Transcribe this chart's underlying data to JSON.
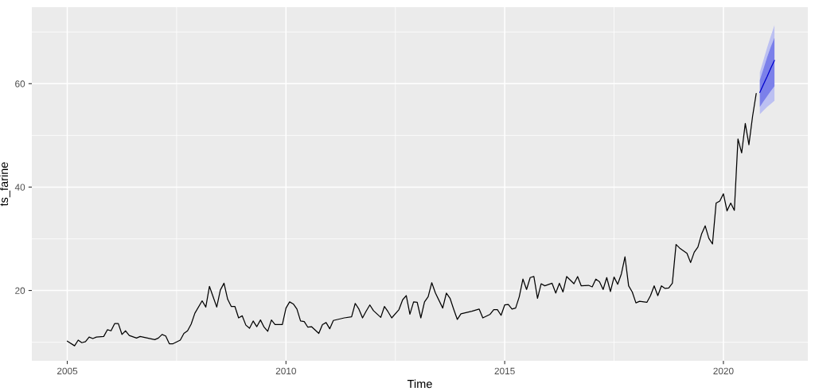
{
  "chart_data": {
    "type": "line",
    "xlabel": "Time",
    "ylabel": "ts_farine",
    "xlim": [
      2004.19,
      2021.93
    ],
    "ylim": [
      6.4,
      74.8
    ],
    "xticks": [
      2005,
      2010,
      2015,
      2020
    ],
    "yticks": [
      20,
      40,
      60
    ],
    "grid": true,
    "series": [
      {
        "color": "#000000",
        "x": [
          2005.0,
          2005.167,
          2005.25,
          2005.333,
          2005.417,
          2005.5,
          2005.583,
          2005.667,
          2005.833,
          2005.917,
          2006.0,
          2006.083,
          2006.167,
          2006.25,
          2006.333,
          2006.417,
          2006.583,
          2006.667,
          2006.833,
          2007.0,
          2007.083,
          2007.167,
          2007.25,
          2007.333,
          2007.417,
          2007.583,
          2007.667,
          2007.75,
          2007.833,
          2007.917,
          2008.083,
          2008.167,
          2008.25,
          2008.333,
          2008.417,
          2008.5,
          2008.583,
          2008.667,
          2008.75,
          2008.833,
          2008.917,
          2009.0,
          2009.083,
          2009.167,
          2009.25,
          2009.333,
          2009.417,
          2009.5,
          2009.583,
          2009.667,
          2009.75,
          2009.917,
          2010.0,
          2010.083,
          2010.167,
          2010.25,
          2010.333,
          2010.417,
          2010.5,
          2010.583,
          2010.75,
          2010.833,
          2010.917,
          2011.0,
          2011.083,
          2011.333,
          2011.5,
          2011.583,
          2011.667,
          2011.75,
          2011.833,
          2011.917,
          2012.0,
          2012.167,
          2012.25,
          2012.333,
          2012.417,
          2012.583,
          2012.667,
          2012.75,
          2012.833,
          2012.917,
          2013.0,
          2013.083,
          2013.167,
          2013.25,
          2013.333,
          2013.417,
          2013.583,
          2013.667,
          2013.75,
          2013.833,
          2013.917,
          2014.0,
          2014.25,
          2014.417,
          2014.5,
          2014.667,
          2014.75,
          2014.833,
          2014.917,
          2015.0,
          2015.083,
          2015.167,
          2015.25,
          2015.333,
          2015.417,
          2015.5,
          2015.583,
          2015.667,
          2015.75,
          2015.833,
          2015.917,
          2016.083,
          2016.167,
          2016.25,
          2016.333,
          2016.417,
          2016.583,
          2016.667,
          2016.75,
          2016.917,
          2017.0,
          2017.083,
          2017.167,
          2017.25,
          2017.333,
          2017.417,
          2017.5,
          2017.583,
          2017.667,
          2017.75,
          2017.833,
          2017.917,
          2018.0,
          2018.083,
          2018.25,
          2018.333,
          2018.417,
          2018.5,
          2018.583,
          2018.667,
          2018.75,
          2018.833,
          2018.917,
          2019.0,
          2019.167,
          2019.25,
          2019.333,
          2019.417,
          2019.5,
          2019.583,
          2019.667,
          2019.75,
          2019.833,
          2019.917,
          2020.0,
          2020.083,
          2020.167,
          2020.25,
          2020.333,
          2020.417,
          2020.5,
          2020.583,
          2020.667,
          2020.75
        ],
        "values": [
          10.2,
          9.3,
          10.4,
          9.9,
          10.1,
          11.0,
          10.7,
          11.0,
          11.1,
          12.4,
          12.2,
          13.6,
          13.6,
          11.5,
          12.2,
          11.3,
          10.8,
          11.1,
          10.8,
          10.5,
          10.8,
          11.5,
          11.2,
          9.7,
          9.7,
          10.4,
          11.7,
          12.2,
          13.5,
          15.6,
          18.0,
          16.8,
          20.8,
          18.8,
          16.8,
          20.1,
          21.4,
          18.3,
          16.9,
          16.9,
          14.7,
          15.1,
          13.3,
          12.7,
          14.1,
          13.0,
          14.3,
          12.9,
          12.1,
          14.3,
          13.4,
          13.4,
          16.6,
          17.8,
          17.4,
          16.4,
          14.1,
          14.0,
          12.9,
          13.0,
          11.7,
          13.4,
          13.8,
          12.6,
          14.2,
          14.7,
          14.9,
          17.5,
          16.4,
          14.7,
          16.0,
          17.2,
          16.1,
          14.8,
          16.9,
          15.9,
          14.7,
          16.3,
          18.2,
          19.0,
          15.4,
          17.8,
          17.7,
          14.7,
          17.8,
          18.8,
          21.5,
          19.5,
          16.6,
          19.5,
          18.5,
          16.4,
          14.4,
          15.5,
          16.0,
          16.4,
          14.7,
          15.4,
          16.3,
          16.3,
          15.2,
          17.2,
          17.3,
          16.4,
          16.6,
          18.8,
          22.2,
          20.2,
          22.5,
          22.7,
          18.5,
          21.3,
          20.9,
          21.4,
          19.5,
          21.4,
          19.7,
          22.7,
          21.3,
          22.7,
          20.9,
          21.0,
          20.7,
          22.2,
          21.7,
          20.2,
          22.5,
          19.8,
          22.6,
          21.2,
          23.2,
          26.5,
          20.9,
          19.7,
          17.6,
          17.9,
          17.7,
          19.0,
          20.9,
          19.0,
          20.9,
          20.4,
          20.5,
          21.4,
          28.9,
          28.2,
          27.2,
          25.4,
          27.4,
          28.4,
          30.9,
          32.5,
          30.1,
          29.0,
          36.9,
          37.3,
          38.7,
          35.4,
          36.9,
          35.5,
          49.3,
          46.6,
          52.3,
          48.2,
          53.7,
          58.1
        ]
      },
      {
        "color": "#bcc0f2",
        "x": [
          2020.833,
          2020.917,
          2021.0,
          2021.083,
          2021.167
        ],
        "values": [
          null,
          null,
          null,
          null,
          null
        ],
        "lower": [
          54.1,
          54.8,
          55.5,
          56.1,
          56.7
        ],
        "upper": [
          62.2,
          64.6,
          67.0,
          69.2,
          71.3
        ]
      },
      {
        "color": "#7b80ea",
        "x": [
          2020.833,
          2020.917,
          2021.0,
          2021.083,
          2021.167
        ],
        "values": [
          null,
          null,
          null,
          null,
          null
        ],
        "lower": [
          55.5,
          56.6,
          57.6,
          58.6,
          59.5
        ],
        "upper": [
          60.7,
          62.9,
          65.1,
          67.1,
          68.9
        ]
      },
      {
        "color": "#0000cc",
        "x": [
          2020.833,
          2020.917,
          2021.0,
          2021.083,
          2021.167
        ],
        "values": [
          58.3,
          59.9,
          61.4,
          63.0,
          64.5
        ]
      }
    ]
  }
}
